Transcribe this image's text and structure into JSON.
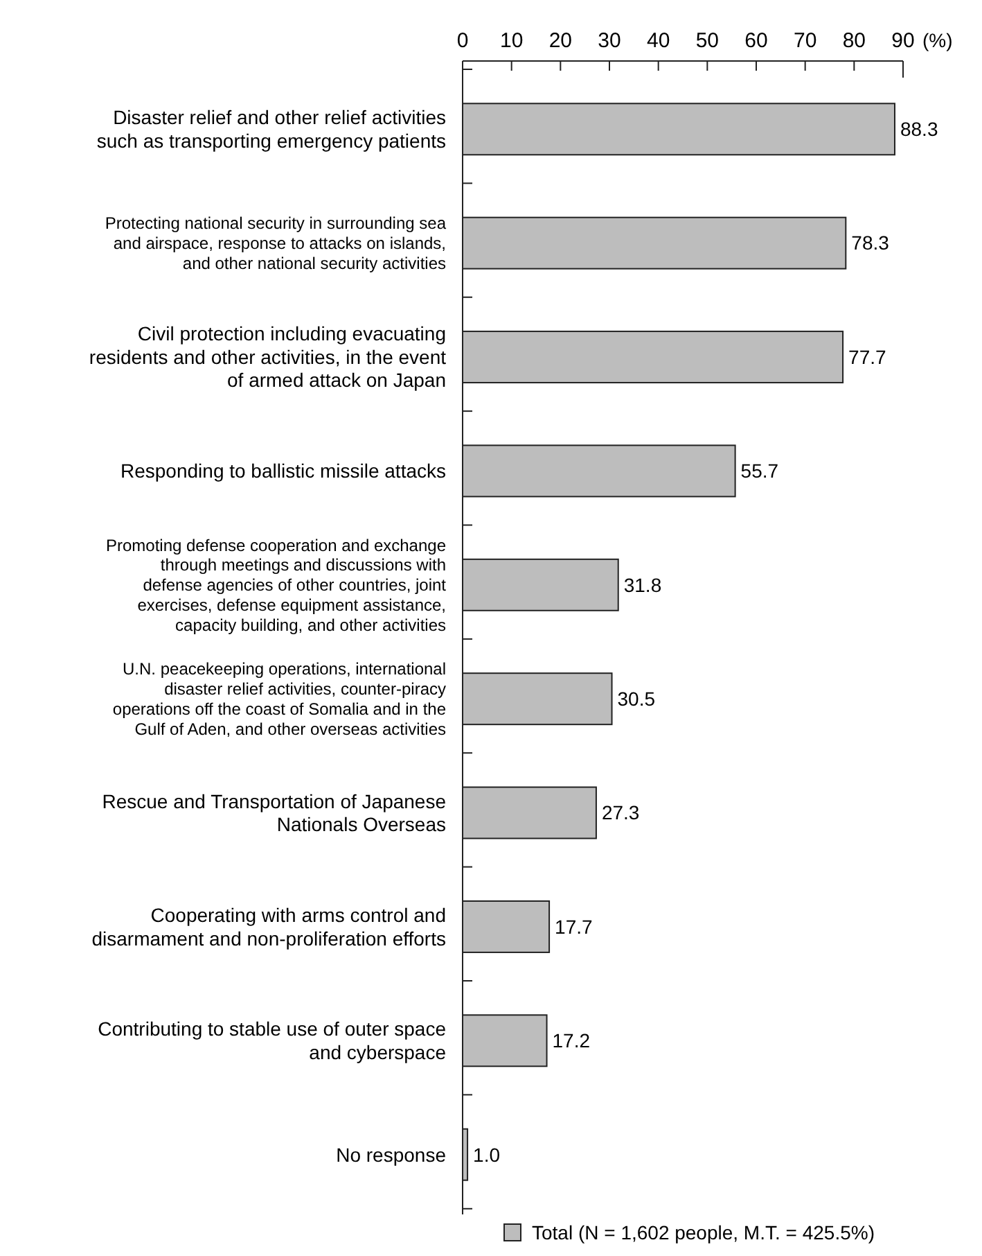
{
  "chart_data": {
    "type": "bar",
    "orientation": "horizontal",
    "xlabel": "(%)",
    "categories": [
      "Disaster relief and other relief activities such as transporting emergency patients",
      "Protecting national security in surrounding sea and airspace, response to attacks on islands, and other national security activities",
      "Civil protection including evacuating residents and other activities, in the event of armed attack on Japan",
      "Responding to ballistic missile attacks",
      "Promoting defense cooperation and exchange through meetings and discussions with defense agencies of other countries, joint exercises, defense equipment assistance, capacity building, and other activities",
      "U.N. peacekeeping operations, international disaster relief activities, counter-piracy operations off the coast of Somalia and in the Gulf of Aden, and other overseas activities",
      "Rescue and Transportation of Japanese Nationals Overseas",
      "Cooperating with arms control and disarmament and non-proliferation efforts",
      "Contributing to stable use of outer space and cyberspace",
      "No response"
    ],
    "series": [
      {
        "name": "Total (N = 1,602 people, M.T. = 425.5%)",
        "color": "#bdbdbd",
        "values": [
          88.3,
          78.3,
          77.7,
          55.7,
          31.8,
          30.5,
          27.3,
          17.7,
          17.2,
          1.0
        ]
      }
    ],
    "value_labels": [
      "88.3",
      "78.3",
      "77.7",
      "55.7",
      "31.8",
      "30.5",
      "27.3",
      "17.7",
      "17.2",
      "1.0"
    ],
    "xlim": [
      0,
      90
    ],
    "xticks": [
      0,
      10,
      20,
      30,
      40,
      50,
      60,
      70,
      80,
      90
    ],
    "legend": "bottom",
    "grid": false
  }
}
